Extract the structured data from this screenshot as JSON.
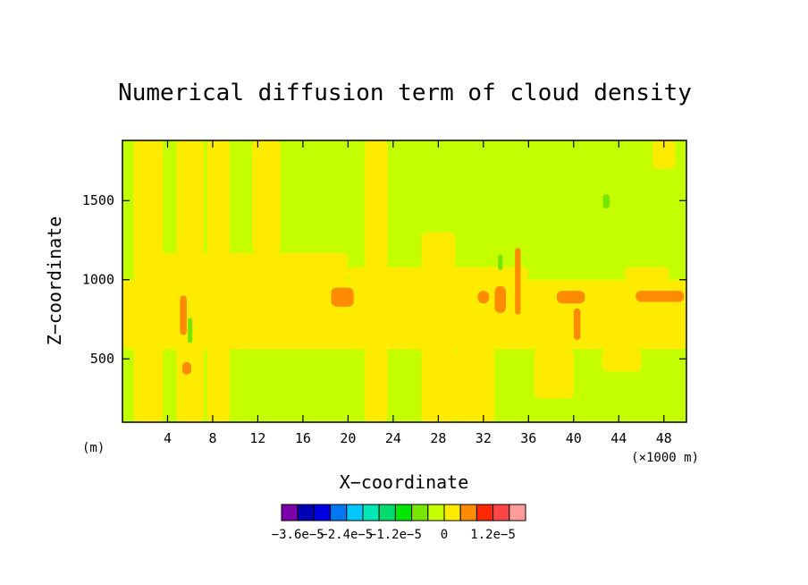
{
  "chart_data": {
    "type": "heatmap",
    "title": "Numerical diffusion term of cloud density",
    "xlabel": "X−coordinate",
    "ylabel": "Z−coordinate",
    "x_unit": "(×1000 m)",
    "y_unit": "(m)",
    "xlim": [
      0,
      50
    ],
    "ylim": [
      100,
      1880
    ],
    "x_ticks": [
      4,
      8,
      12,
      16,
      20,
      24,
      28,
      32,
      36,
      40,
      44,
      48
    ],
    "x_tick_labels": [
      "4",
      "8",
      "12",
      "16",
      "20",
      "24",
      "28",
      "32",
      "36",
      "40",
      "44",
      "48"
    ],
    "y_ticks": [
      500,
      1000,
      1500
    ],
    "y_tick_labels": [
      "500",
      "1000",
      "1500"
    ],
    "colorbar": {
      "colors": [
        "#7b00a8",
        "#0000b4",
        "#0000e0",
        "#0078f0",
        "#00c8ff",
        "#00e6b4",
        "#00dc6e",
        "#00e600",
        "#78e600",
        "#c3ff00",
        "#ffeb00",
        "#ff8c00",
        "#ff2800",
        "#ff4646",
        "#ff9b9b"
      ],
      "labels": [
        {
          "text": "−3.6e−5",
          "index": 1
        },
        {
          "text": "−2.4e−5",
          "index": 4
        },
        {
          "text": "−1.2e−5",
          "index": 7
        },
        {
          "text": "0",
          "index": 10
        },
        {
          "text": "1.2e−5",
          "index": 13
        }
      ]
    },
    "field": {
      "background_level": 9,
      "regions": [
        {
          "level": 10,
          "x": [
            1,
            3.6
          ],
          "z": [
            100,
            1880
          ]
        },
        {
          "level": 10,
          "x": [
            4.8,
            7.2
          ],
          "z": [
            100,
            1880
          ]
        },
        {
          "level": 10,
          "x": [
            7.5,
            9.5
          ],
          "z": [
            100,
            1880
          ]
        },
        {
          "level": 10,
          "x": [
            0,
            50
          ],
          "z": [
            560,
            1000
          ]
        },
        {
          "level": 10,
          "x": [
            2.8,
            20
          ],
          "z": [
            1000,
            1170
          ]
        },
        {
          "level": 10,
          "x": [
            20,
            36
          ],
          "z": [
            1000,
            1080
          ]
        },
        {
          "level": 10,
          "x": [
            11.5,
            14
          ],
          "z": [
            1170,
            1880
          ]
        },
        {
          "level": 10,
          "x": [
            21.5,
            23.5
          ],
          "z": [
            100,
            1880
          ]
        },
        {
          "level": 10,
          "x": [
            26.5,
            29.5
          ],
          "z": [
            100,
            1300
          ]
        },
        {
          "level": 10,
          "x": [
            29.5,
            33
          ],
          "z": [
            100,
            560
          ]
        },
        {
          "level": 10,
          "x": [
            36.5,
            40
          ],
          "z": [
            250,
            560
          ]
        },
        {
          "level": 10,
          "x": [
            42.5,
            46
          ],
          "z": [
            420,
            560
          ]
        },
        {
          "level": 10,
          "x": [
            44.5,
            48.5
          ],
          "z": [
            1000,
            1080
          ]
        },
        {
          "level": 10,
          "x": [
            47,
            49
          ],
          "z": [
            1700,
            1880
          ]
        },
        {
          "level": 11,
          "x": [
            18.5,
            20.5
          ],
          "z": [
            830,
            950
          ]
        },
        {
          "level": 11,
          "x": [
            31.5,
            32.5
          ],
          "z": [
            850,
            930
          ]
        },
        {
          "level": 11,
          "x": [
            33,
            34
          ],
          "z": [
            790,
            960
          ]
        },
        {
          "level": 11,
          "x": [
            38.5,
            41
          ],
          "z": [
            850,
            930
          ]
        },
        {
          "level": 11,
          "x": [
            45.5,
            49.8
          ],
          "z": [
            860,
            930
          ]
        },
        {
          "level": 11,
          "x": [
            5.3,
            6.1
          ],
          "z": [
            400,
            480
          ]
        },
        {
          "level": 11,
          "x": [
            5.1,
            5.7
          ],
          "z": [
            650,
            900
          ]
        },
        {
          "level": 11,
          "x": [
            40,
            40.6
          ],
          "z": [
            620,
            820
          ]
        },
        {
          "level": 11,
          "x": [
            34.8,
            35.3
          ],
          "z": [
            780,
            1200
          ]
        },
        {
          "level": 8,
          "x": [
            5.8,
            6.2
          ],
          "z": [
            600,
            760
          ]
        },
        {
          "level": 8,
          "x": [
            33.3,
            33.7
          ],
          "z": [
            1060,
            1160
          ]
        },
        {
          "level": 8,
          "x": [
            42.6,
            43.2
          ],
          "z": [
            1450,
            1540
          ]
        }
      ]
    }
  }
}
